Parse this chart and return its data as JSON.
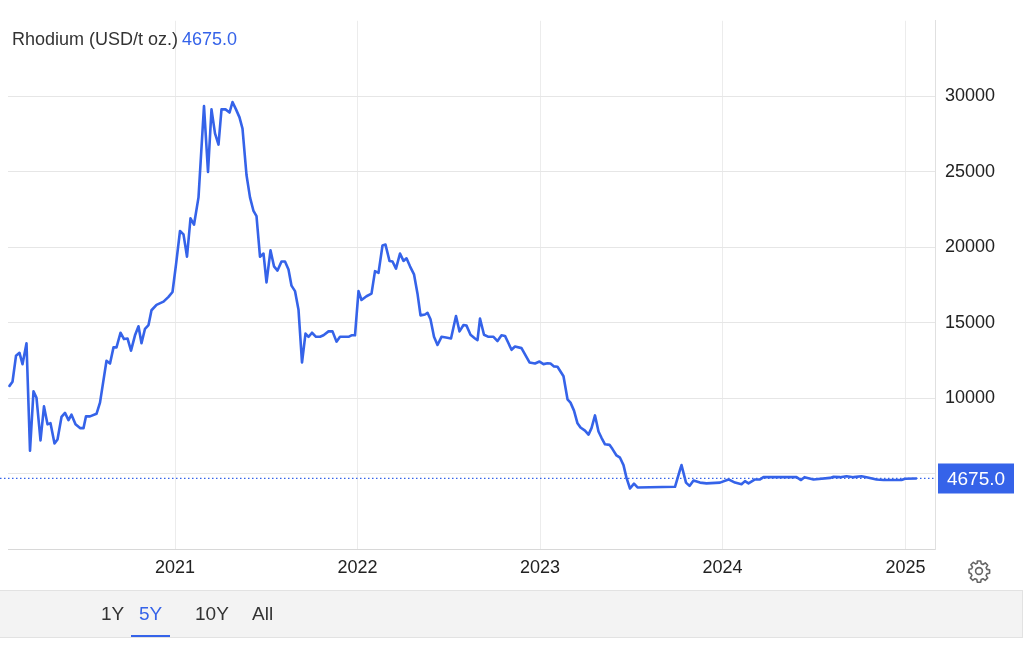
{
  "chart_data": {
    "type": "line",
    "title": "Rhodium (USD/t oz.)",
    "subtitle": "4675.0",
    "x": [
      "2020-02-05",
      "2020-02-11",
      "2020-02-18",
      "2020-02-25",
      "2020-03-02",
      "2020-03-10",
      "2020-03-17",
      "2020-03-24",
      "2020-03-30",
      "2020-04-07",
      "2020-04-14",
      "2020-04-21",
      "2020-04-27",
      "2020-05-05",
      "2020-05-11",
      "2020-05-19",
      "2020-05-26",
      "2020-06-02",
      "2020-06-08",
      "2020-06-16",
      "2020-06-25",
      "2020-07-02",
      "2020-07-07",
      "2020-07-15",
      "2020-07-28",
      "2020-08-04",
      "2020-08-17",
      "2020-08-24",
      "2020-08-31",
      "2020-09-06",
      "2020-09-14",
      "2020-09-21",
      "2020-09-28",
      "2020-10-05",
      "2020-10-13",
      "2020-10-20",
      "2020-10-26",
      "2020-11-02",
      "2020-11-09",
      "2020-11-15",
      "2020-11-25",
      "2020-12-09",
      "2020-12-19",
      "2020-12-27",
      "2021-01-03",
      "2021-01-11",
      "2021-01-18",
      "2021-01-25",
      "2021-02-01",
      "2021-02-08",
      "2021-02-17",
      "2021-02-28",
      "2021-03-08",
      "2021-03-15",
      "2021-03-22",
      "2021-03-29",
      "2021-04-04",
      "2021-04-12",
      "2021-04-20",
      "2021-04-26",
      "2021-05-03",
      "2021-05-10",
      "2021-05-16",
      "2021-05-24",
      "2021-05-31",
      "2021-06-07",
      "2021-06-13",
      "2021-06-20",
      "2021-06-27",
      "2021-07-03",
      "2021-07-11",
      "2021-07-18",
      "2021-07-25",
      "2021-08-02",
      "2021-08-09",
      "2021-08-16",
      "2021-08-22",
      "2021-08-29",
      "2021-09-05",
      "2021-09-12",
      "2021-09-19",
      "2021-09-25",
      "2021-10-02",
      "2021-10-10",
      "2021-10-18",
      "2021-10-25",
      "2021-11-04",
      "2021-11-12",
      "2021-11-20",
      "2021-11-27",
      "2021-12-14",
      "2021-12-20",
      "2021-12-27",
      "2022-01-03",
      "2022-01-09",
      "2022-01-19",
      "2022-01-29",
      "2022-02-05",
      "2022-02-12",
      "2022-02-20",
      "2022-02-26",
      "2022-03-06",
      "2022-03-12",
      "2022-03-19",
      "2022-03-27",
      "2022-04-03",
      "2022-04-09",
      "2022-04-16",
      "2022-04-24",
      "2022-05-01",
      "2022-05-07",
      "2022-05-16",
      "2022-05-21",
      "2022-05-27",
      "2022-06-03",
      "2022-06-10",
      "2022-06-18",
      "2022-06-27",
      "2022-07-07",
      "2022-07-17",
      "2022-07-24",
      "2022-08-01",
      "2022-08-07",
      "2022-08-15",
      "2022-08-24",
      "2022-08-29",
      "2022-09-03",
      "2022-09-11",
      "2022-09-20",
      "2022-09-30",
      "2022-10-08",
      "2022-10-16",
      "2022-10-23",
      "2022-10-30",
      "2022-11-05",
      "2022-11-12",
      "2022-11-25",
      "2022-12-02",
      "2022-12-11",
      "2022-12-22",
      "2022-12-31",
      "2023-01-08",
      "2023-01-16",
      "2023-01-22",
      "2023-01-29",
      "2023-02-05",
      "2023-02-17",
      "2023-02-25",
      "2023-03-03",
      "2023-03-10",
      "2023-03-17",
      "2023-03-23",
      "2023-04-01",
      "2023-04-08",
      "2023-04-14",
      "2023-04-21",
      "2023-04-28",
      "2023-05-04",
      "2023-05-11",
      "2023-05-20",
      "2023-05-26",
      "2023-06-03",
      "2023-06-10",
      "2023-06-17",
      "2023-06-23",
      "2023-06-30",
      "2023-07-08",
      "2023-07-15",
      "2023-09-28",
      "2023-10-08",
      "2023-10-11",
      "2023-10-20",
      "2023-10-27",
      "2023-11-04",
      "2023-11-17",
      "2023-11-30",
      "2023-12-27",
      "2024-01-13",
      "2024-01-26",
      "2024-02-08",
      "2024-02-15",
      "2024-02-22",
      "2024-03-06",
      "2024-03-16",
      "2024-03-23",
      "2024-04-12",
      "2024-05-28",
      "2024-06-06",
      "2024-06-13",
      "2024-07-01",
      "2024-08-03",
      "2024-08-10",
      "2024-08-23",
      "2024-09-05",
      "2024-09-19",
      "2024-10-05",
      "2024-10-15",
      "2024-11-04",
      "2024-11-18",
      "2024-12-24",
      "2024-12-31",
      "2025-01-22"
    ],
    "series": [
      {
        "color": "#3563e9",
        "values": [
          10810,
          11080,
          12800,
          13000,
          12250,
          13630,
          6520,
          10450,
          10020,
          7200,
          9450,
          8260,
          8340,
          6990,
          7260,
          8750,
          9020,
          8540,
          8900,
          8260,
          8010,
          8010,
          8790,
          8790,
          8960,
          9700,
          12470,
          12290,
          13360,
          13360,
          14330,
          13910,
          13950,
          13140,
          14160,
          14760,
          13630,
          14590,
          14840,
          15820,
          16180,
          16390,
          16710,
          17030,
          18840,
          21070,
          20850,
          19370,
          21910,
          21490,
          23300,
          29350,
          24990,
          29130,
          27540,
          26800,
          29130,
          29130,
          28920,
          29620,
          29130,
          28600,
          27860,
          24780,
          23300,
          22400,
          22060,
          19370,
          19580,
          17670,
          19790,
          18730,
          18450,
          19050,
          19050,
          18520,
          17450,
          17090,
          15860,
          12360,
          14270,
          14060,
          14330,
          14060,
          14060,
          14160,
          14420,
          14420,
          13740,
          14060,
          14060,
          14160,
          14160,
          17090,
          16500,
          16750,
          16920,
          18410,
          18300,
          20110,
          20170,
          19090,
          19050,
          18580,
          19580,
          19090,
          19260,
          18730,
          18200,
          16920,
          15480,
          15540,
          15650,
          15220,
          14060,
          13520,
          14060,
          14010,
          13950,
          15440,
          14420,
          14840,
          14800,
          14200,
          13950,
          13840,
          15270,
          14200,
          14060,
          14060,
          13780,
          14160,
          14120,
          13630,
          13200,
          13420,
          13310,
          12890,
          12360,
          12290,
          12420,
          12250,
          12310,
          12290,
          12100,
          12080,
          11450,
          9920,
          9700,
          9170,
          8330,
          8050,
          7840,
          7580,
          8010,
          8850,
          7790,
          7370,
          6940,
          6900,
          6620,
          6200,
          6050,
          5560,
          4710,
          4010,
          4330,
          4080,
          4120,
          5240,
          5560,
          4400,
          4180,
          4540,
          4400,
          4350,
          4400,
          4610,
          4400,
          4290,
          4500,
          4350,
          4610,
          4610,
          4760,
          4760,
          4760,
          4570,
          4760,
          4610,
          4710,
          4780,
          4760,
          4820,
          4760,
          4820,
          4760,
          4610,
          4570,
          4570,
          4650,
          4675
        ]
      }
    ],
    "xlim": [
      "2020-02-02",
      "2025-03-01"
    ],
    "xticks": [
      "2021",
      "2022",
      "2023",
      "2024",
      "2025"
    ],
    "ylim": [
      0,
      35000
    ],
    "yticks": [
      {
        "value": 0,
        "label": null
      },
      {
        "value": 5000,
        "label": null
      },
      10000,
      15000,
      20000,
      25000,
      30000
    ],
    "grid": true,
    "ref_lines": [
      {
        "axis": "y",
        "value": 4675,
        "label": "4675.0",
        "color": "#3563e9",
        "line_style": "dotted"
      }
    ],
    "annotations": [
      "1Y",
      "5Y",
      "10Y",
      "All"
    ]
  }
}
